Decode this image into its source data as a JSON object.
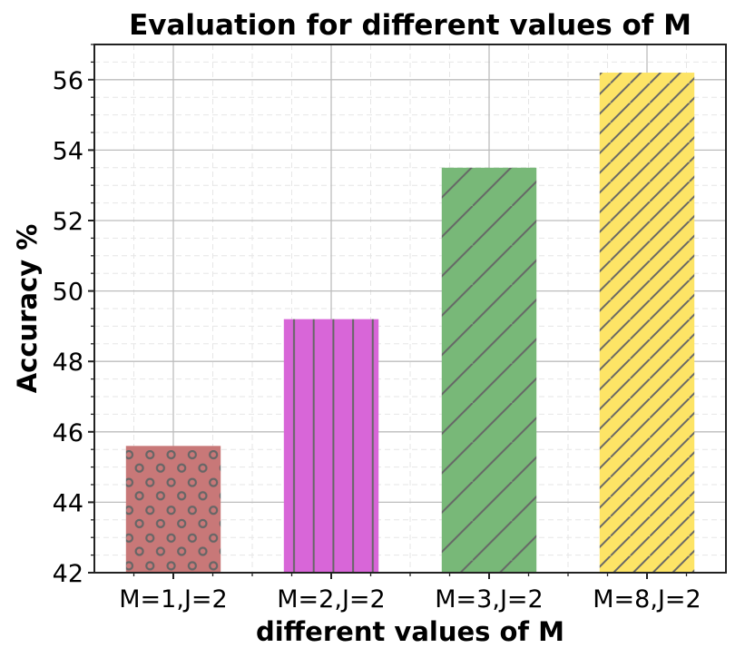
{
  "chart_data": {
    "type": "bar",
    "title": "Evaluation for different values of M",
    "xlabel": "different values of M",
    "ylabel": "Accuracy %",
    "categories": [
      "M=1,J=2",
      "M=2,J=2",
      "M=3,J=2",
      "M=8,J=2"
    ],
    "values": [
      45.6,
      49.2,
      53.5,
      56.2
    ],
    "colors": [
      "#c87878",
      "#d866d8",
      "#78b878",
      "#fde466"
    ],
    "hatches": [
      "circles",
      "vertical",
      "diagonal-wide",
      "diagonal-dense"
    ],
    "hatch_color": "#666666",
    "ylim": [
      42,
      57
    ],
    "xlim": [
      -0.5,
      3.5
    ],
    "yticks": [
      42,
      44,
      46,
      48,
      50,
      52,
      54,
      56
    ],
    "grid": true
  }
}
